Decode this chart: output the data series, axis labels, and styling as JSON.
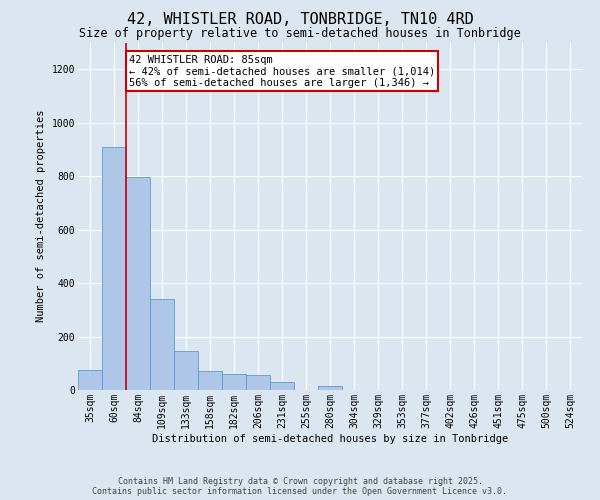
{
  "title": "42, WHISTLER ROAD, TONBRIDGE, TN10 4RD",
  "subtitle": "Size of property relative to semi-detached houses in Tonbridge",
  "xlabel": "Distribution of semi-detached houses by size in Tonbridge",
  "ylabel": "Number of semi-detached properties",
  "bins": [
    "35sqm",
    "60sqm",
    "84sqm",
    "109sqm",
    "133sqm",
    "158sqm",
    "182sqm",
    "206sqm",
    "231sqm",
    "255sqm",
    "280sqm",
    "304sqm",
    "329sqm",
    "353sqm",
    "377sqm",
    "402sqm",
    "426sqm",
    "451sqm",
    "475sqm",
    "500sqm",
    "524sqm"
  ],
  "bar_values": [
    75,
    910,
    795,
    340,
    145,
    70,
    60,
    55,
    30,
    0,
    15,
    0,
    0,
    0,
    0,
    0,
    0,
    0,
    0,
    0,
    0
  ],
  "bar_color": "#aec6e8",
  "bar_edge_color": "#5b9bd5",
  "background_color": "#dce6f1",
  "plot_bg_color": "#dce6f1",
  "grid_color": "#ffffff",
  "annotation_box_color": "#cc0000",
  "property_line_color": "#cc0000",
  "property_label": "42 WHISTLER ROAD: 85sqm",
  "smaller_label": "← 42% of semi-detached houses are smaller (1,014)",
  "larger_label": "56% of semi-detached houses are larger (1,346) →",
  "ylim": [
    0,
    1300
  ],
  "yticks": [
    0,
    200,
    400,
    600,
    800,
    1000,
    1200
  ],
  "footer1": "Contains HM Land Registry data © Crown copyright and database right 2025.",
  "footer2": "Contains public sector information licensed under the Open Government Licence v3.0.",
  "title_fontsize": 11,
  "subtitle_fontsize": 8.5,
  "axis_label_fontsize": 7.5,
  "tick_fontsize": 7,
  "annotation_fontsize": 7.5,
  "footer_fontsize": 6
}
